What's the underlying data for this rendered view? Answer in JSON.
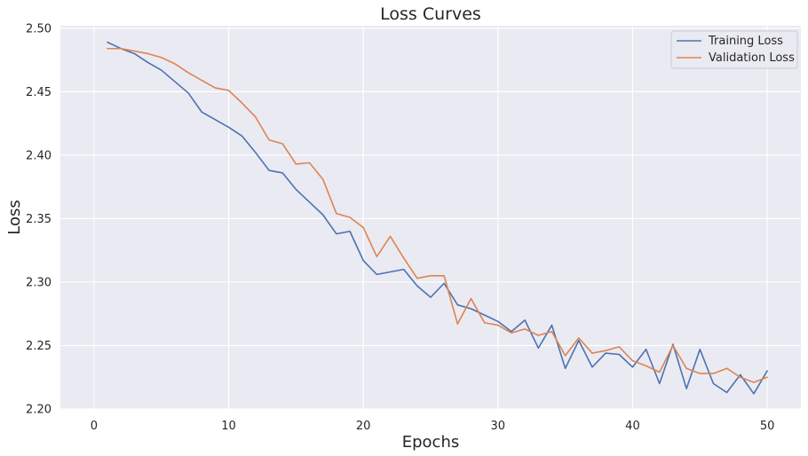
{
  "chart_data": {
    "type": "line",
    "title": "Loss Curves",
    "xlabel": "Epochs",
    "ylabel": "Loss",
    "xlim": [
      -2.5,
      52.5
    ],
    "ylim": [
      2.2,
      2.502
    ],
    "x_ticks": [
      0,
      10,
      20,
      30,
      40,
      50
    ],
    "y_ticks": [
      2.2,
      2.25,
      2.3,
      2.35,
      2.4,
      2.45,
      2.5
    ],
    "grid": true,
    "background": "#eaeaf2",
    "legend_position": "top-right",
    "x": [
      1,
      2,
      3,
      4,
      5,
      6,
      7,
      8,
      9,
      10,
      11,
      12,
      13,
      14,
      15,
      16,
      17,
      18,
      19,
      20,
      21,
      22,
      23,
      24,
      25,
      26,
      27,
      28,
      29,
      30,
      31,
      32,
      33,
      34,
      35,
      36,
      37,
      38,
      39,
      40,
      41,
      42,
      43,
      44,
      45,
      46,
      47,
      48,
      49,
      50
    ],
    "series": [
      {
        "name": "Training Loss",
        "color": "#4c72b0",
        "values": [
          2.489,
          2.484,
          2.48,
          2.473,
          2.467,
          2.458,
          2.449,
          2.434,
          2.428,
          2.422,
          2.415,
          2.402,
          2.388,
          2.386,
          2.373,
          2.363,
          2.353,
          2.338,
          2.34,
          2.317,
          2.306,
          2.308,
          2.31,
          2.297,
          2.288,
          2.299,
          2.282,
          2.279,
          2.274,
          2.269,
          2.261,
          2.27,
          2.248,
          2.266,
          2.232,
          2.254,
          2.233,
          2.244,
          2.243,
          2.233,
          2.247,
          2.22,
          2.251,
          2.216,
          2.247,
          2.22,
          2.213,
          2.227,
          2.212,
          2.23
        ]
      },
      {
        "name": "Validation Loss",
        "color": "#dd8452",
        "values": [
          2.484,
          2.484,
          2.482,
          2.48,
          2.477,
          2.472,
          2.465,
          2.459,
          2.453,
          2.451,
          2.441,
          2.43,
          2.412,
          2.409,
          2.393,
          2.394,
          2.381,
          2.354,
          2.351,
          2.343,
          2.32,
          2.336,
          2.319,
          2.303,
          2.305,
          2.305,
          2.267,
          2.287,
          2.268,
          2.266,
          2.26,
          2.263,
          2.258,
          2.261,
          2.242,
          2.256,
          2.244,
          2.246,
          2.249,
          2.238,
          2.234,
          2.229,
          2.25,
          2.232,
          2.228,
          2.228,
          2.232,
          2.225,
          2.221,
          2.225
        ]
      }
    ]
  }
}
